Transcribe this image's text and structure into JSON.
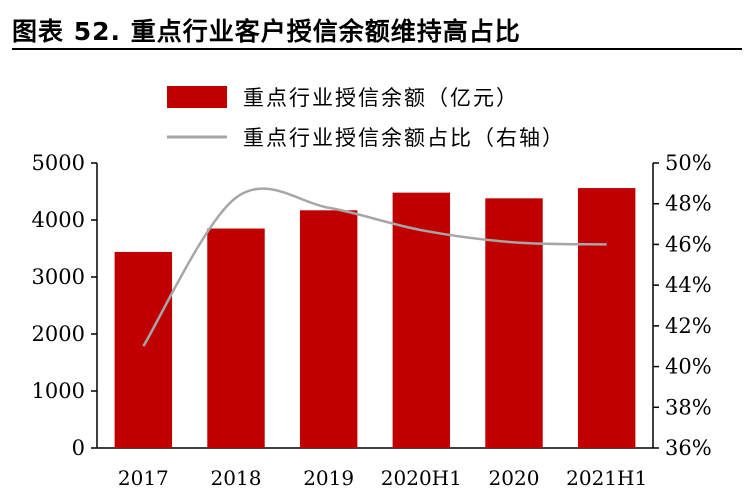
{
  "header": {
    "title": "图表 52. 重点行业客户授信余额维持高占比"
  },
  "colors": {
    "bar": "#c00000",
    "line": "#a6a6a6",
    "axis": "#000000"
  },
  "chart_data": {
    "type": "bar",
    "title": "图表 52. 重点行业客户授信余额维持高占比",
    "categories": [
      "2017",
      "2018",
      "2019",
      "2020H1",
      "2020",
      "2021H1"
    ],
    "series": [
      {
        "name": "重点行业授信余额（亿元）",
        "type": "bar",
        "axis": "left",
        "values": [
          3440,
          3850,
          4170,
          4480,
          4380,
          4560
        ]
      },
      {
        "name": "重点行业授信余额占比（右轴）",
        "type": "line",
        "axis": "right",
        "values": [
          41.0,
          48.3,
          47.8,
          46.7,
          46.1,
          46.0
        ]
      }
    ],
    "y_left": {
      "min": 0,
      "max": 5000,
      "ticks": [
        0,
        1000,
        2000,
        3000,
        4000,
        5000
      ]
    },
    "y_right": {
      "min": 36,
      "max": 50,
      "ticks": [
        "36%",
        "38%",
        "40%",
        "42%",
        "44%",
        "46%",
        "48%",
        "50%"
      ],
      "tick_values": [
        36,
        38,
        40,
        42,
        44,
        46,
        48,
        50
      ]
    },
    "legend_position": "top",
    "grid": false
  }
}
